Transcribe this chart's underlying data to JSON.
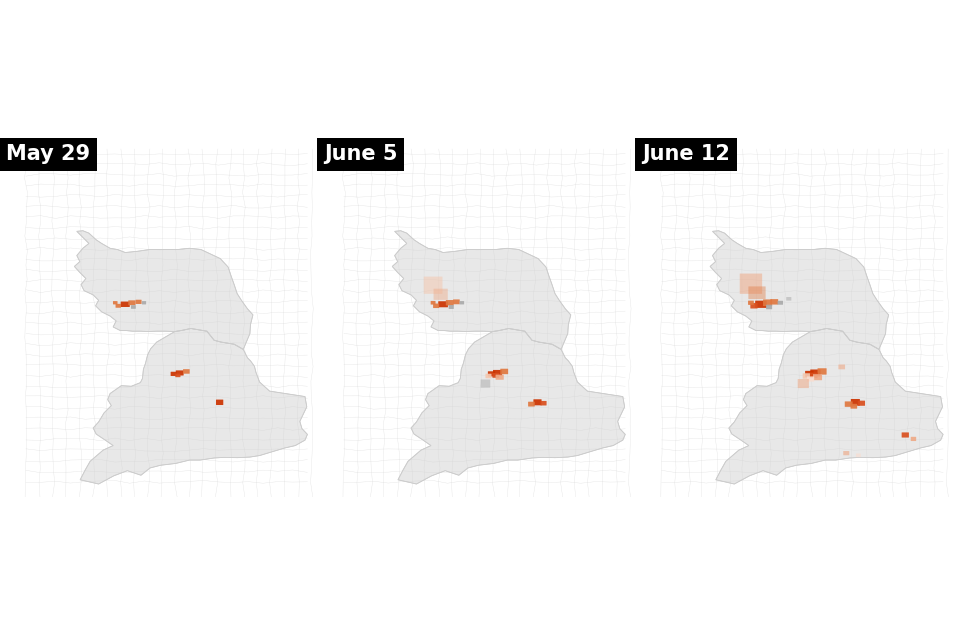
{
  "titles": [
    "May 29",
    "June 5",
    "June 12"
  ],
  "title_bg": "#000000",
  "title_color": "#ffffff",
  "title_fontsize": 15,
  "title_fontweight": "bold",
  "background_color": "#ffffff",
  "land_color": "#e8e8e8",
  "border_color": "#cccccc",
  "border_width": 0.3,
  "figsize": [
    9.6,
    6.4
  ],
  "dpi": 100,
  "colors": {
    "high": "#cc3300",
    "med_high": "#d94f1e",
    "medium": "#e07840",
    "low": "#eeaa88",
    "very_low": "#f3c8b0",
    "pale": "#f8ddd0",
    "grey": "#aaaaaa",
    "light_grey": "#c5c5c5"
  },
  "xlim": [
    -8.2,
    2.2
  ],
  "ylim": [
    49.5,
    61.2
  ]
}
